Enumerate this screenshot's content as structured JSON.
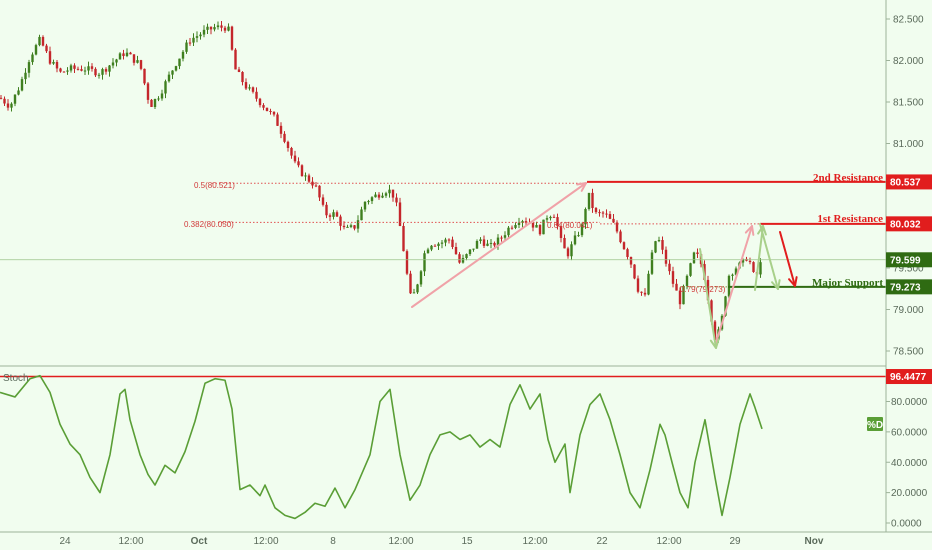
{
  "chart_data": [
    {
      "type": "candlestick",
      "pane": "price",
      "y_ticks": [
        "82.500",
        "82.000",
        "81.500",
        "81.000",
        "80.500",
        "80.000",
        "79.500",
        "79.000",
        "78.500"
      ],
      "ylim": [
        78.3,
        82.65
      ],
      "grid": false,
      "x_ticks": [
        "24",
        "12:00",
        "Oct",
        "12:00",
        "8",
        "12:00",
        "15",
        "12:00",
        "22",
        "12:00",
        "29",
        "Nov"
      ],
      "price_path": [
        [
          0,
          81.55
        ],
        [
          10,
          81.45
        ],
        [
          20,
          81.7
        ],
        [
          30,
          82.05
        ],
        [
          40,
          82.25
        ],
        [
          50,
          82.0
        ],
        [
          60,
          81.85
        ],
        [
          70,
          81.9
        ],
        [
          85,
          81.9
        ],
        [
          100,
          81.85
        ],
        [
          110,
          81.95
        ],
        [
          125,
          82.1
        ],
        [
          140,
          81.95
        ],
        [
          150,
          81.45
        ],
        [
          160,
          81.6
        ],
        [
          175,
          81.95
        ],
        [
          190,
          82.25
        ],
        [
          205,
          82.35
        ],
        [
          215,
          82.4
        ],
        [
          228,
          82.4
        ],
        [
          235,
          81.9
        ],
        [
          245,
          81.7
        ],
        [
          260,
          81.5
        ],
        [
          275,
          81.3
        ],
        [
          285,
          81.05
        ],
        [
          295,
          80.75
        ],
        [
          305,
          80.6
        ],
        [
          315,
          80.5
        ],
        [
          325,
          80.15
        ],
        [
          335,
          80.15
        ],
        [
          345,
          79.95
        ],
        [
          355,
          80.0
        ],
        [
          365,
          80.3
        ],
        [
          380,
          80.4
        ],
        [
          388,
          80.45
        ],
        [
          395,
          80.35
        ],
        [
          400,
          80.0
        ],
        [
          405,
          79.6
        ],
        [
          410,
          79.15
        ],
        [
          415,
          79.2
        ],
        [
          420,
          79.45
        ],
        [
          425,
          79.7
        ],
        [
          430,
          79.8
        ],
        [
          440,
          79.8
        ],
        [
          450,
          79.85
        ],
        [
          460,
          79.55
        ],
        [
          470,
          79.7
        ],
        [
          480,
          79.85
        ],
        [
          490,
          79.75
        ],
        [
          500,
          79.85
        ],
        [
          510,
          80.0
        ],
        [
          520,
          80.1
        ],
        [
          530,
          80.05
        ],
        [
          540,
          79.95
        ],
        [
          548,
          80.15
        ],
        [
          555,
          80.15
        ],
        [
          560,
          79.85
        ],
        [
          567,
          79.65
        ],
        [
          575,
          79.85
        ],
        [
          582,
          80.0
        ],
        [
          588,
          80.4
        ],
        [
          595,
          80.15
        ],
        [
          605,
          80.15
        ],
        [
          615,
          80.0
        ],
        [
          622,
          79.8
        ],
        [
          630,
          79.6
        ],
        [
          638,
          79.25
        ],
        [
          645,
          79.15
        ],
        [
          650,
          79.55
        ],
        [
          657,
          79.9
        ],
        [
          665,
          79.6
        ],
        [
          672,
          79.35
        ],
        [
          680,
          79.1
        ],
        [
          690,
          79.5
        ],
        [
          695,
          79.7
        ],
        [
          703,
          79.5
        ],
        [
          710,
          79.0
        ],
        [
          716,
          78.6
        ],
        [
          722,
          78.9
        ],
        [
          728,
          79.4
        ],
        [
          735,
          79.5
        ],
        [
          742,
          79.55
        ],
        [
          748,
          79.65
        ],
        [
          755,
          79.35
        ],
        [
          762,
          79.6
        ]
      ],
      "fib_levels": [
        {
          "label": "0.5(80.521)",
          "value": 80.521
        },
        {
          "label": "0.382(80.050)",
          "value": 80.05
        },
        {
          "label": "0.64(80.041)",
          "value": 80.041
        },
        {
          "label": "0.79(79.273)",
          "value": 79.273
        }
      ],
      "levels": [
        {
          "name": "2nd Resistance",
          "value": 80.537,
          "tag": "80.537",
          "color": "#e11d1d"
        },
        {
          "name": "1st Resistance",
          "value": 80.032,
          "tag": "80.032",
          "color": "#e11d1d"
        },
        {
          "name": "Major Support",
          "value": 79.273,
          "tag": "79.273",
          "color": "#2f6b12"
        }
      ],
      "current_price": {
        "value": 79.599,
        "tag": "79.599",
        "color": "#2f6b12"
      }
    },
    {
      "type": "line",
      "pane": "oscillator",
      "name": "Stoch",
      "legend": "%D",
      "y_ticks": [
        "80.0000",
        "60.0000",
        "40.0000",
        "20.0000",
        "0.0000"
      ],
      "ylim": [
        0,
        100
      ],
      "level": {
        "value": 96.4477,
        "tag": "96.4477",
        "color": "#e11d1d"
      },
      "series_path": [
        [
          0,
          86
        ],
        [
          15,
          83
        ],
        [
          30,
          95
        ],
        [
          40,
          97
        ],
        [
          50,
          86
        ],
        [
          60,
          65
        ],
        [
          70,
          52
        ],
        [
          80,
          45
        ],
        [
          90,
          30
        ],
        [
          100,
          20
        ],
        [
          110,
          45
        ],
        [
          120,
          85
        ],
        [
          125,
          88
        ],
        [
          130,
          68
        ],
        [
          140,
          45
        ],
        [
          148,
          32
        ],
        [
          155,
          25
        ],
        [
          165,
          38
        ],
        [
          175,
          33
        ],
        [
          185,
          47
        ],
        [
          195,
          67
        ],
        [
          205,
          92
        ],
        [
          215,
          95
        ],
        [
          225,
          94
        ],
        [
          232,
          75
        ],
        [
          240,
          22
        ],
        [
          250,
          25
        ],
        [
          260,
          18
        ],
        [
          265,
          25
        ],
        [
          275,
          10
        ],
        [
          285,
          5
        ],
        [
          295,
          3
        ],
        [
          305,
          7
        ],
        [
          315,
          13
        ],
        [
          325,
          11
        ],
        [
          335,
          23
        ],
        [
          345,
          10
        ],
        [
          355,
          22
        ],
        [
          370,
          45
        ],
        [
          380,
          80
        ],
        [
          390,
          88
        ],
        [
          400,
          45
        ],
        [
          410,
          15
        ],
        [
          420,
          25
        ],
        [
          430,
          45
        ],
        [
          440,
          58
        ],
        [
          450,
          60
        ],
        [
          460,
          55
        ],
        [
          470,
          58
        ],
        [
          480,
          50
        ],
        [
          490,
          55
        ],
        [
          500,
          50
        ],
        [
          510,
          78
        ],
        [
          520,
          91
        ],
        [
          530,
          75
        ],
        [
          540,
          85
        ],
        [
          548,
          55
        ],
        [
          555,
          40
        ],
        [
          565,
          52
        ],
        [
          570,
          20
        ],
        [
          580,
          58
        ],
        [
          590,
          78
        ],
        [
          600,
          85
        ],
        [
          610,
          68
        ],
        [
          620,
          45
        ],
        [
          630,
          20
        ],
        [
          640,
          10
        ],
        [
          650,
          35
        ],
        [
          660,
          65
        ],
        [
          665,
          58
        ],
        [
          672,
          40
        ],
        [
          680,
          20
        ],
        [
          688,
          10
        ],
        [
          695,
          40
        ],
        [
          705,
          68
        ],
        [
          715,
          30
        ],
        [
          722,
          5
        ],
        [
          730,
          30
        ],
        [
          740,
          65
        ],
        [
          750,
          85
        ],
        [
          755,
          76
        ],
        [
          762,
          62
        ]
      ]
    }
  ]
}
